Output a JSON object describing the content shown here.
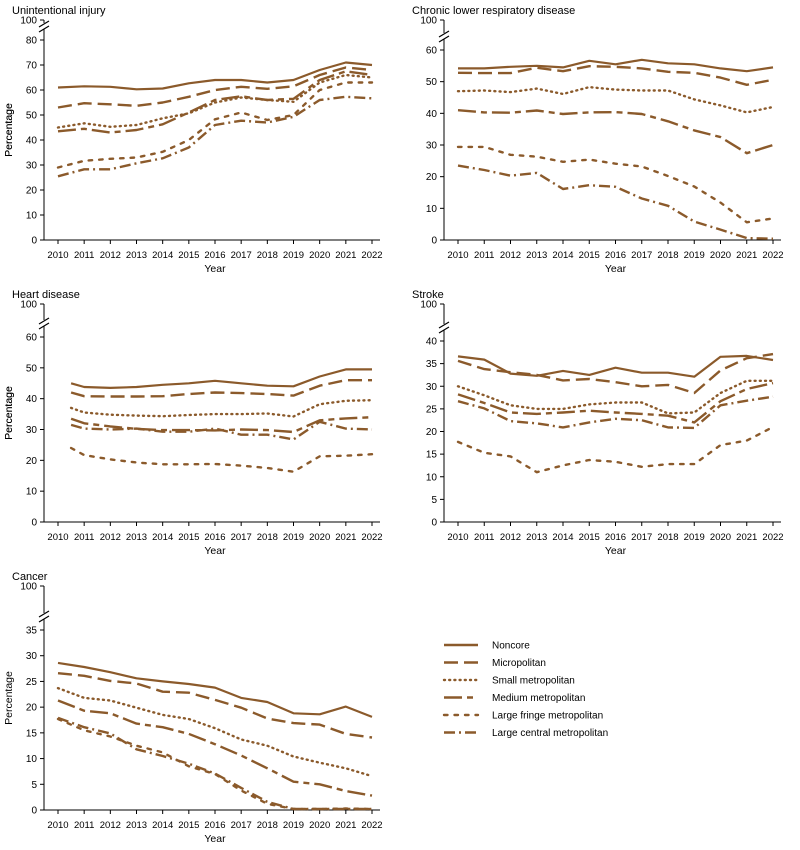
{
  "colors": {
    "line": "#8b5a2b",
    "axis": "#000000",
    "text": "#000000"
  },
  "legend": {
    "items": [
      {
        "name": "Noncore",
        "style": "solid"
      },
      {
        "name": "Micropolitan",
        "style": "dash"
      },
      {
        "name": "Small metropolitan",
        "style": "dot"
      },
      {
        "name": "Medium metropolitan",
        "style": "longdash"
      },
      {
        "name": "Large fringe metropolitan",
        "style": "sparsedot"
      },
      {
        "name": "Large central metropolitan",
        "style": "dashdot"
      }
    ]
  },
  "chart_data": [
    {
      "type": "line",
      "title": "Unintentional injury",
      "xlabel": "Year",
      "ylabel": "Percentage",
      "x": [
        2010,
        2011,
        2012,
        2013,
        2014,
        2015,
        2016,
        2017,
        2018,
        2019,
        2020,
        2021,
        2022
      ],
      "yticks": [
        0,
        10,
        20,
        30,
        40,
        50,
        60,
        70,
        80
      ],
      "ybreak_top": 100,
      "ylim": [
        0,
        80
      ],
      "series": [
        {
          "name": "Noncore",
          "values": [
            61,
            61.5,
            61.3,
            60.3,
            60.6,
            62.7,
            64,
            64,
            63,
            64,
            68,
            71,
            70
          ]
        },
        {
          "name": "Micropolitan",
          "values": [
            53,
            54.7,
            54.3,
            53.7,
            55,
            57.3,
            60,
            61.3,
            60.5,
            61.5,
            66,
            69,
            68
          ]
        },
        {
          "name": "Small metropolitan",
          "values": [
            45,
            46.7,
            45.3,
            46,
            48.7,
            50.7,
            55,
            57,
            56,
            55.3,
            63,
            66,
            65
          ]
        },
        {
          "name": "Medium metropolitan",
          "values": [
            43.5,
            44.5,
            43,
            44,
            46.3,
            51,
            56,
            57.5,
            56,
            56.5,
            64,
            67.5,
            66
          ]
        },
        {
          "name": "Large fringe metropolitan",
          "values": [
            29,
            31.7,
            32.5,
            33,
            35.3,
            40,
            48.3,
            51,
            48,
            50,
            60,
            63,
            63
          ]
        },
        {
          "name": "Large central metropolitan",
          "values": [
            25.5,
            28.3,
            28.3,
            30.7,
            32.7,
            37,
            46,
            47.7,
            47,
            49.3,
            56,
            57.3,
            56.7
          ]
        }
      ]
    },
    {
      "type": "line",
      "title": "Chronic lower respiratory disease",
      "xlabel": "Year",
      "ylabel": "Percentage",
      "x": [
        2010,
        2011,
        2012,
        2013,
        2014,
        2015,
        2016,
        2017,
        2018,
        2019,
        2020,
        2021,
        2022
      ],
      "yticks": [
        0,
        10,
        20,
        30,
        40,
        50,
        60
      ],
      "ybreak_top": 100,
      "ylim": [
        0,
        60
      ],
      "series": [
        {
          "name": "Noncore",
          "values": [
            54.2,
            54.2,
            54.7,
            55,
            54.5,
            56.6,
            55.5,
            56.9,
            55.8,
            55.5,
            54.2,
            53.3,
            54.5
          ]
        },
        {
          "name": "Micropolitan",
          "values": [
            52.8,
            52.7,
            52.7,
            54.4,
            53.3,
            54.9,
            54.7,
            54.2,
            53.1,
            52.8,
            51.3,
            49,
            50.6
          ]
        },
        {
          "name": "Small metropolitan",
          "values": [
            47,
            47.2,
            46.7,
            47.8,
            46.1,
            48.3,
            47.5,
            47.2,
            47.2,
            44.4,
            42.5,
            40.3,
            42
          ]
        },
        {
          "name": "Medium metropolitan",
          "values": [
            41,
            40.3,
            40.2,
            40.9,
            39.8,
            40.3,
            40.4,
            39.8,
            37.5,
            34.6,
            32.5,
            27.4,
            30
          ]
        },
        {
          "name": "Large fringe metropolitan",
          "values": [
            29.4,
            29.4,
            26.9,
            26.3,
            24.7,
            25.4,
            24.1,
            23.2,
            20.2,
            16.9,
            11.8,
            5.6,
            6.8
          ]
        },
        {
          "name": "Large central metropolitan",
          "values": [
            23.5,
            22.1,
            20.3,
            21.2,
            16.1,
            17.3,
            16.8,
            13.1,
            10.8,
            5.8,
            3.3,
            0.6,
            0.4
          ]
        }
      ]
    },
    {
      "type": "line",
      "title": "Heart disease",
      "xlabel": "Year",
      "ylabel": "Percentage",
      "x": [
        2010,
        2011,
        2012,
        2013,
        2014,
        2015,
        2016,
        2017,
        2018,
        2019,
        2020,
        2021,
        2022
      ],
      "xstart": 2010.5,
      "yticks": [
        0,
        10,
        20,
        30,
        40,
        50,
        60
      ],
      "ybreak_top": 100,
      "ylim": [
        0,
        60
      ],
      "series": [
        {
          "name": "Noncore",
          "values": [
            45,
            43.8,
            43.5,
            43.8,
            44.5,
            45,
            45.8,
            45,
            44.2,
            44,
            47.2,
            49.5,
            49.5
          ]
        },
        {
          "name": "Micropolitan",
          "values": [
            42,
            40.8,
            40.7,
            40.7,
            40.8,
            41.5,
            42,
            41.8,
            41.5,
            41,
            44.2,
            46,
            46
          ]
        },
        {
          "name": "Small metropolitan",
          "values": [
            37,
            35.5,
            34.8,
            34.5,
            34.3,
            34.7,
            35,
            35,
            35.2,
            34.2,
            38.2,
            39.3,
            39.5
          ]
        },
        {
          "name": "Medium metropolitan",
          "values": [
            33.5,
            32,
            31,
            30.2,
            29.8,
            29.8,
            29.7,
            30,
            29.8,
            29.2,
            33,
            33.6,
            34
          ]
        },
        {
          "name": "Large fringe metropolitan",
          "values": [
            24,
            21.7,
            20.3,
            19.3,
            18.7,
            18.7,
            18.8,
            18.3,
            17.5,
            16.3,
            21.3,
            21.5,
            22
          ]
        },
        {
          "name": "Large central metropolitan",
          "values": [
            31.5,
            30.3,
            30,
            30.3,
            29.3,
            29.3,
            30.3,
            28.3,
            28.3,
            26.8,
            32.5,
            30.3,
            30
          ]
        }
      ]
    },
    {
      "type": "line",
      "title": "Stroke",
      "xlabel": "Year",
      "ylabel": "Percentage",
      "x": [
        2010,
        2011,
        2012,
        2013,
        2014,
        2015,
        2016,
        2017,
        2018,
        2019,
        2020,
        2021,
        2022
      ],
      "yticks": [
        0,
        5,
        10,
        15,
        20,
        25,
        30,
        35,
        40
      ],
      "ybreak_top": 100,
      "ylim": [
        0,
        40
      ],
      "series": [
        {
          "name": "Noncore",
          "values": [
            36.6,
            35.9,
            32.8,
            32.3,
            33.4,
            32.5,
            34.1,
            33,
            33,
            32.1,
            36.5,
            36.7,
            35.8
          ]
        },
        {
          "name": "Micropolitan",
          "values": [
            35.6,
            33.8,
            33.1,
            32.5,
            31.3,
            31.6,
            30.9,
            30,
            30.3,
            28.5,
            33.5,
            36.2,
            37.1
          ]
        },
        {
          "name": "Small metropolitan",
          "values": [
            30,
            28,
            25.8,
            25,
            25,
            26,
            26.4,
            26.4,
            24,
            24.2,
            28.5,
            31.2,
            31.2
          ]
        },
        {
          "name": "Medium metropolitan",
          "values": [
            28.2,
            26.3,
            24.2,
            23.9,
            24.2,
            24.6,
            24.2,
            23.9,
            23.5,
            22,
            26.7,
            29.4,
            30.7
          ]
        },
        {
          "name": "Large fringe metropolitan",
          "values": [
            17.7,
            15.3,
            14.5,
            11,
            12.5,
            13.7,
            13.3,
            12.2,
            12.8,
            12.8,
            17,
            18,
            21
          ]
        },
        {
          "name": "Large central metropolitan",
          "values": [
            26.7,
            25.1,
            22.3,
            21.8,
            20.9,
            22,
            22.8,
            22.5,
            20.9,
            20.8,
            25.8,
            26.8,
            27.7
          ]
        }
      ]
    },
    {
      "type": "line",
      "title": "Cancer",
      "xlabel": "Year",
      "ylabel": "Percentage",
      "x": [
        2010,
        2011,
        2012,
        2013,
        2014,
        2015,
        2016,
        2017,
        2018,
        2019,
        2020,
        2021,
        2022
      ],
      "yticks": [
        0,
        5,
        10,
        15,
        20,
        25,
        30,
        35
      ],
      "ybreak_top": 100,
      "ylim": [
        0,
        35
      ],
      "series": [
        {
          "name": "Noncore",
          "values": [
            28.6,
            27.8,
            26.8,
            25.6,
            25,
            24.5,
            23.8,
            21.8,
            21,
            18.8,
            18.6,
            20.1,
            18.1
          ]
        },
        {
          "name": "Micropolitan",
          "values": [
            26.6,
            26.1,
            25.1,
            24.6,
            23,
            22.8,
            21.4,
            19.9,
            17.8,
            16.9,
            16.6,
            14.8,
            14.1
          ]
        },
        {
          "name": "Small metropolitan",
          "values": [
            23.7,
            21.8,
            21.3,
            19.9,
            18.5,
            17.7,
            15.9,
            13.7,
            12.5,
            10.4,
            9.2,
            8.1,
            6.6
          ]
        },
        {
          "name": "Medium metropolitan",
          "values": [
            21.3,
            19.3,
            18.8,
            16.8,
            16.1,
            14.8,
            12.8,
            10.6,
            8.1,
            5.5,
            5,
            3.7,
            2.8
          ]
        },
        {
          "name": "Large fringe metropolitan",
          "values": [
            17.7,
            15.5,
            14.3,
            12.5,
            11.2,
            8.5,
            7,
            3.8,
            1.2,
            0.2,
            0.2,
            0.3,
            0.2
          ]
        },
        {
          "name": "Large central metropolitan",
          "values": [
            17.9,
            16.1,
            14.9,
            11.8,
            10.5,
            9,
            7.1,
            4.3,
            1.6,
            0.2,
            0.2,
            0.2,
            0.2
          ]
        }
      ]
    }
  ]
}
